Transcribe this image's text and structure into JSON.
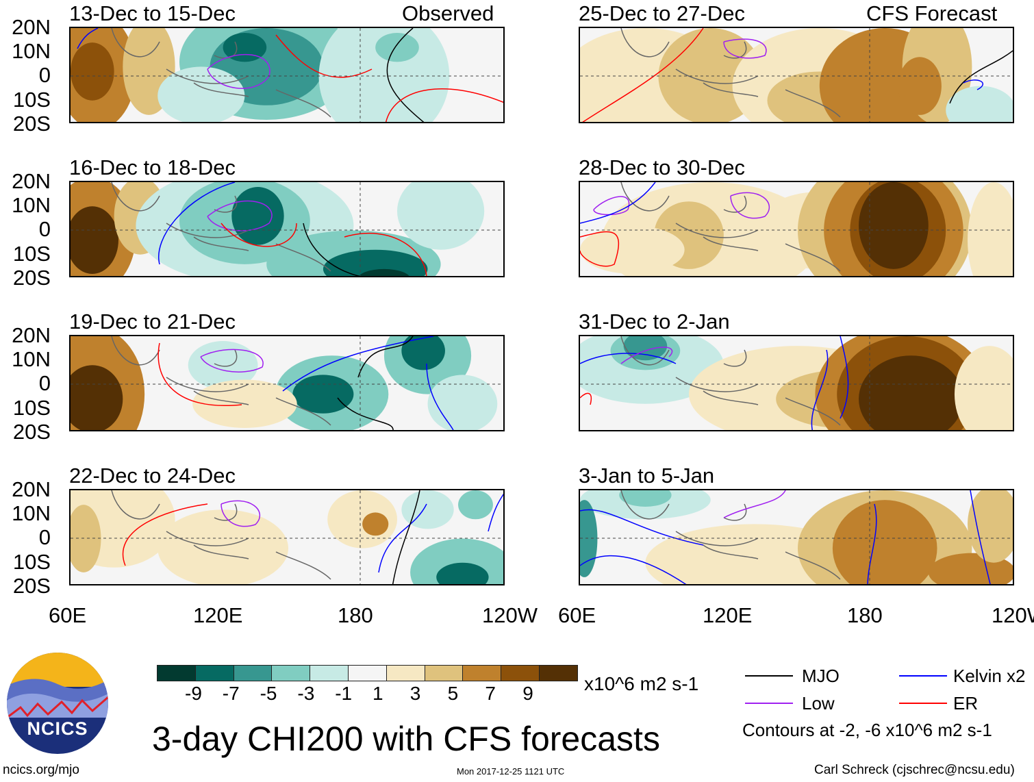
{
  "header": {
    "left_label": "Observed",
    "right_label": "CFS Forecast"
  },
  "panels": [
    {
      "title": "13-Dec to 15-Dec",
      "kind": "observed"
    },
    {
      "title": "16-Dec to 18-Dec",
      "kind": "observed"
    },
    {
      "title": "19-Dec to 21-Dec",
      "kind": "observed"
    },
    {
      "title": "22-Dec to 24-Dec",
      "kind": "observed"
    },
    {
      "title": "25-Dec to 27-Dec",
      "kind": "forecast"
    },
    {
      "title": "28-Dec to 30-Dec",
      "kind": "forecast"
    },
    {
      "title": "31-Dec to 2-Jan",
      "kind": "forecast"
    },
    {
      "title": "3-Jan to 5-Jan",
      "kind": "forecast"
    }
  ],
  "lat_ticks": [
    "20N",
    "10N",
    "0",
    "10S",
    "20S"
  ],
  "lon_ticks": [
    "60E",
    "120E",
    "180",
    "120W"
  ],
  "colorbar": {
    "labels": [
      "-9",
      "-7",
      "-5",
      "-3",
      "-1",
      "1",
      "3",
      "5",
      "7",
      "9"
    ],
    "colors": [
      "#023a30",
      "#066a62",
      "#379790",
      "#80cdc1",
      "#c7eae5",
      "#f5f5f5",
      "#f6e8c3",
      "#dfc27d",
      "#bf812d",
      "#8c510a",
      "#543005"
    ],
    "units": "x10^6 m2 s-1"
  },
  "title": "3-day CHI200 with CFS forecasts",
  "legend": {
    "items": [
      {
        "label": "MJO",
        "color": "#000000"
      },
      {
        "label": "Kelvin x2",
        "color": "#0000ff"
      },
      {
        "label": "Low",
        "color": "#a020f0"
      },
      {
        "label": "ER",
        "color": "#ff0000"
      }
    ],
    "note": "Contours at -2, -6 x10^6 m2 s-1"
  },
  "logo": {
    "text": "NCICS"
  },
  "footer": {
    "url": "ncics.org/mjo",
    "timestamp": "Mon 2017-12-25 1121 UTC",
    "credit": "Carl Schreck (cjschrec@ncsu.edu)"
  }
}
